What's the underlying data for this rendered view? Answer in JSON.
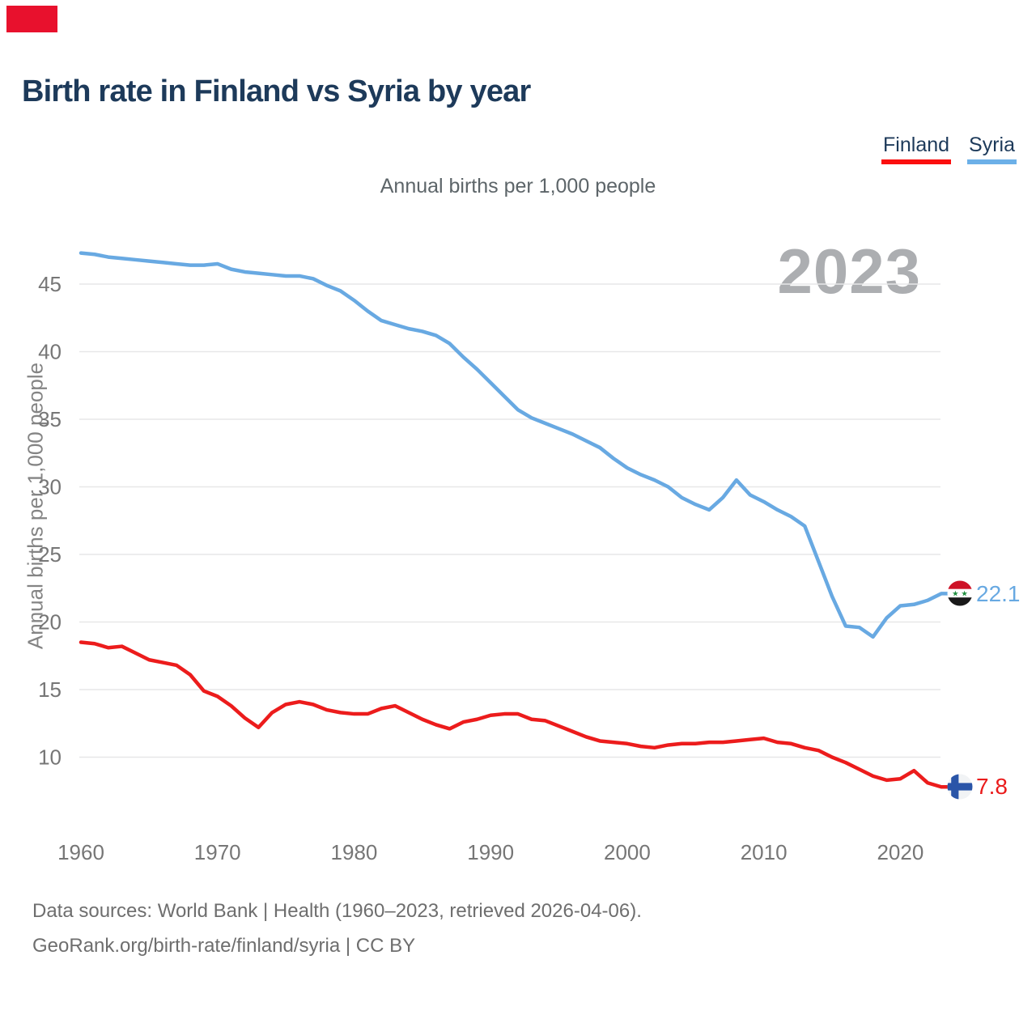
{
  "brand_color": "#e8112d",
  "header": {
    "title": "Birth rate in Finland vs Syria by year"
  },
  "legend": [
    {
      "label": "Finland",
      "color": "#fb0f0f"
    },
    {
      "label": "Syria",
      "color": "#6cb0e8"
    }
  ],
  "subtitle": "Annual births per 1,000 people",
  "watermark": "2023",
  "y_axis": {
    "title": "Annual births per 1,000 people",
    "ticks": [
      45,
      40,
      35,
      30,
      25,
      20,
      15,
      10
    ]
  },
  "x_axis": {
    "ticks": [
      1960,
      1970,
      1980,
      1990,
      2000,
      2010,
      2020
    ]
  },
  "end_labels": [
    {
      "series": "Syria",
      "value": "22.1",
      "flag": "syria-flag",
      "color": "#68a9e2"
    },
    {
      "series": "Finland",
      "value": "7.8",
      "flag": "finland-flag",
      "color": "#ea1b1b"
    }
  ],
  "footer": {
    "line1": "Data sources: World Bank | Health (1960–2023, retrieved 2026-04-06).",
    "line2": "GeoRank.org/birth-rate/finland/syria | CC BY"
  },
  "chart_data": {
    "type": "line",
    "title": "Birth rate in Finland vs Syria by year",
    "ylabel": "Annual births per 1,000 people",
    "xlabel": "",
    "ylim": [
      7,
      48
    ],
    "yticks": [
      10,
      15,
      20,
      25,
      30,
      35,
      40,
      45
    ],
    "xticks": [
      1960,
      1970,
      1980,
      1990,
      2000,
      2010,
      2020
    ],
    "grid": "horizontal",
    "legend_position": "top-right",
    "watermark": "2023",
    "x": [
      1960,
      1961,
      1962,
      1963,
      1964,
      1965,
      1966,
      1967,
      1968,
      1969,
      1970,
      1971,
      1972,
      1973,
      1974,
      1975,
      1976,
      1977,
      1978,
      1979,
      1980,
      1981,
      1982,
      1983,
      1984,
      1985,
      1986,
      1987,
      1988,
      1989,
      1990,
      1991,
      1992,
      1993,
      1994,
      1995,
      1996,
      1997,
      1998,
      1999,
      2000,
      2001,
      2002,
      2003,
      2004,
      2005,
      2006,
      2007,
      2008,
      2009,
      2010,
      2011,
      2012,
      2013,
      2014,
      2015,
      2016,
      2017,
      2018,
      2019,
      2020,
      2021,
      2022,
      2023
    ],
    "series": [
      {
        "name": "Finland",
        "color": "#ec1c1c",
        "end_label": "7.8",
        "values": [
          18.5,
          18.4,
          18.1,
          18.2,
          17.7,
          17.2,
          17.0,
          16.8,
          16.1,
          14.9,
          14.5,
          13.8,
          12.9,
          12.2,
          13.3,
          13.9,
          14.1,
          13.9,
          13.5,
          13.3,
          13.2,
          13.2,
          13.6,
          13.8,
          13.3,
          12.8,
          12.4,
          12.1,
          12.6,
          12.8,
          13.1,
          13.2,
          13.2,
          12.8,
          12.7,
          12.3,
          11.9,
          11.5,
          11.2,
          11.1,
          11.0,
          10.8,
          10.7,
          10.9,
          11.0,
          11.0,
          11.1,
          11.1,
          11.2,
          11.3,
          11.4,
          11.1,
          11.0,
          10.7,
          10.5,
          10.0,
          9.6,
          9.1,
          8.6,
          8.3,
          8.4,
          9.0,
          8.1,
          7.8
        ]
      },
      {
        "name": "Syria",
        "color": "#68a9e2",
        "end_label": "22.1",
        "values": [
          47.3,
          47.2,
          47.0,
          46.9,
          46.8,
          46.7,
          46.6,
          46.5,
          46.4,
          46.4,
          46.5,
          46.1,
          45.9,
          45.8,
          45.7,
          45.6,
          45.6,
          45.4,
          44.9,
          44.5,
          43.8,
          43.0,
          42.3,
          42.0,
          41.7,
          41.5,
          41.2,
          40.6,
          39.6,
          38.7,
          37.7,
          36.7,
          35.7,
          35.1,
          34.7,
          34.3,
          33.9,
          33.4,
          32.9,
          32.1,
          31.4,
          30.9,
          30.5,
          30.0,
          29.2,
          28.7,
          28.3,
          29.2,
          30.5,
          29.4,
          28.9,
          28.3,
          27.8,
          27.1,
          24.5,
          21.9,
          19.7,
          19.6,
          18.9,
          20.3,
          21.2,
          21.3,
          21.6,
          22.1
        ]
      }
    ]
  }
}
